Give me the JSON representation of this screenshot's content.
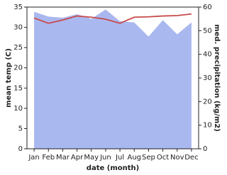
{
  "chart_data": {
    "type": "line-area",
    "x_label": "date (month)",
    "y_label": "mean temp (C)",
    "y2_label": "med. precipitation (kg/m2)",
    "categories": [
      "Jan",
      "Feb",
      "Mar",
      "Apr",
      "May",
      "Jun",
      "Jul",
      "Aug",
      "Sep",
      "Oct",
      "Nov",
      "Dec"
    ],
    "series": [
      {
        "name": "precipitation",
        "color": "#aab8f0",
        "axis": "y2",
        "kind": "area",
        "values": [
          58,
          56,
          55.5,
          57,
          55,
          59,
          54,
          53.5,
          47.5,
          54.5,
          48.5,
          53.5
        ]
      },
      {
        "name": "temperature",
        "color": "#c84a4a",
        "kind": "line",
        "values": [
          32.3,
          31.0,
          31.8,
          32.8,
          32.5,
          32.0,
          31.0,
          32.5,
          32.6,
          32.8,
          32.9,
          33.3
        ]
      }
    ],
    "ylim": [
      0,
      35
    ],
    "yticks": [
      0,
      5,
      10,
      15,
      20,
      25,
      30,
      35
    ],
    "y2lim": [
      0,
      60
    ],
    "y2ticks": [
      0,
      10,
      20,
      30,
      40,
      50,
      60
    ]
  }
}
